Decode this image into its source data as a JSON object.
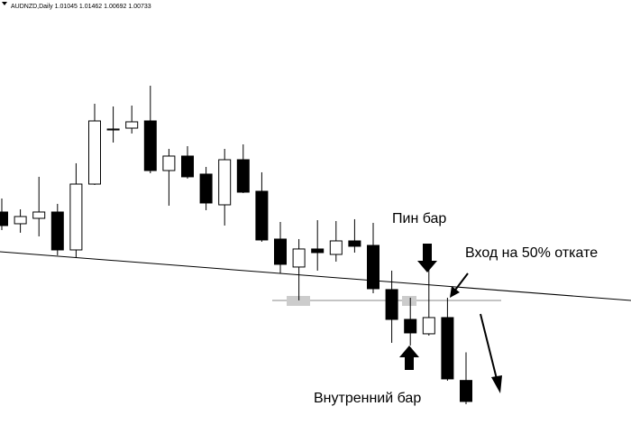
{
  "chart_data": {
    "type": "candlestick",
    "header": "AUDNZD,Daily 1.01045 1.01462 1.00692 1.00733",
    "up_color": "#ffffff",
    "down_color": "#000000",
    "open": [
      1.03547,
      1.03373,
      1.03453,
      1.03547,
      1.02984,
      1.03962,
      1.04766,
      1.04793,
      1.049,
      1.04163,
      1.04378,
      1.0411,
      1.03654,
      1.04324,
      1.03855,
      1.03145,
      1.0273,
      1.02998,
      1.02917,
      1.03118,
      1.03051,
      1.02395,
      1.01952,
      1.01738,
      1.01979,
      1.01045
    ],
    "high": [
      1.03748,
      1.03587,
      1.0407,
      1.03668,
      1.04271,
      1.05155,
      1.05115,
      1.05128,
      1.05423,
      1.04485,
      1.04525,
      1.04217,
      1.04485,
      1.04552,
      1.04137,
      1.034,
      1.03145,
      1.03426,
      1.03413,
      1.0344,
      1.03386,
      1.02676,
      1.02274,
      1.0281,
      1.02274,
      1.01462
    ],
    "low": [
      1.03279,
      1.03239,
      1.03185,
      1.02904,
      1.02877,
      1.03949,
      1.04579,
      1.04713,
      1.04123,
      1.03641,
      1.04043,
      1.03574,
      1.03346,
      1.03828,
      1.03105,
      1.02636,
      1.02234,
      1.02676,
      1.0281,
      1.02944,
      1.02341,
      1.01604,
      1.01564,
      1.01711,
      1.01041,
      1.00692
    ],
    "close": [
      1.03346,
      1.0348,
      1.03547,
      1.02984,
      1.03962,
      1.049,
      1.0478,
      1.04887,
      1.04163,
      1.04378,
      1.0407,
      1.03681,
      1.04324,
      1.03842,
      1.03132,
      1.0277,
      1.02998,
      1.02944,
      1.03118,
      1.03038,
      1.02408,
      1.01952,
      1.01751,
      1.01979,
      1.01068,
      1.00733
    ],
    "annotations": [
      "Пин бар",
      "Вход на 50% откате",
      "Внутренний бар"
    ]
  }
}
